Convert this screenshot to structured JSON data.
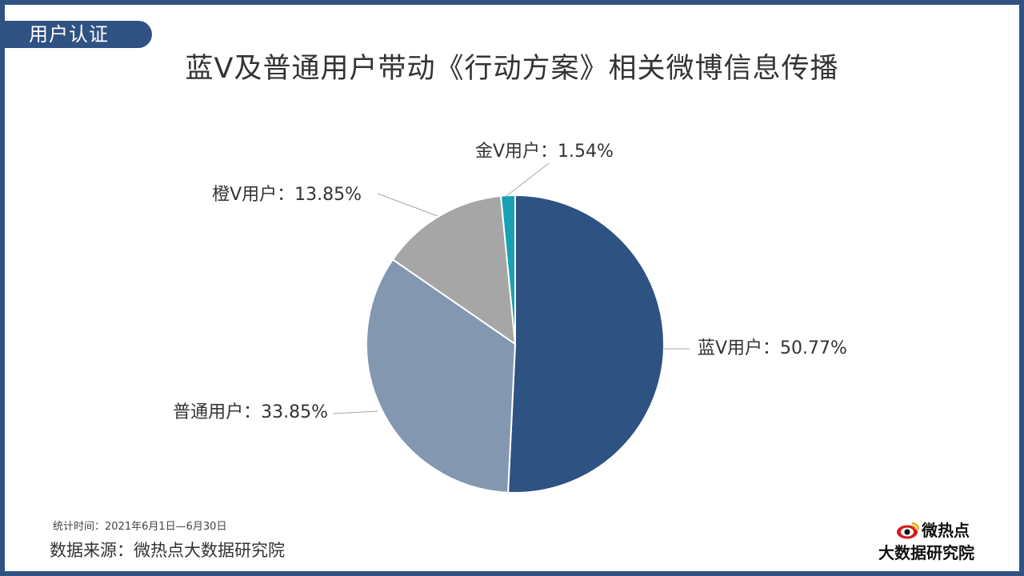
{
  "header": {
    "tag_label": "用户认证"
  },
  "chart_data": {
    "type": "pie",
    "title": "蓝V及普通用户带动《行动方案》相关微博信息传播",
    "start_angle_deg": 0,
    "direction": "clockwise",
    "slices": [
      {
        "label": "蓝V用户",
        "value": 50.77,
        "display": "蓝V用户：50.77%",
        "color": "#2e5282"
      },
      {
        "label": "普通用户",
        "value": 33.85,
        "display": "普通用户：33.85%",
        "color": "#8397b0"
      },
      {
        "label": "橙V用户",
        "value": 13.85,
        "display": "橙V用户：13.85%",
        "color": "#a6a6a6"
      },
      {
        "label": "金V用户",
        "value": 1.54,
        "display": "金V用户：1.54%",
        "color": "#17a1b2"
      }
    ]
  },
  "footer": {
    "stat_time": "统计时间：2021年6月1日—6月30日",
    "source": "数据来源：微热点大数据研究院"
  },
  "logo": {
    "brand": "微热点",
    "institute": "大数据研究院",
    "icon": "weibo-eye-icon"
  }
}
